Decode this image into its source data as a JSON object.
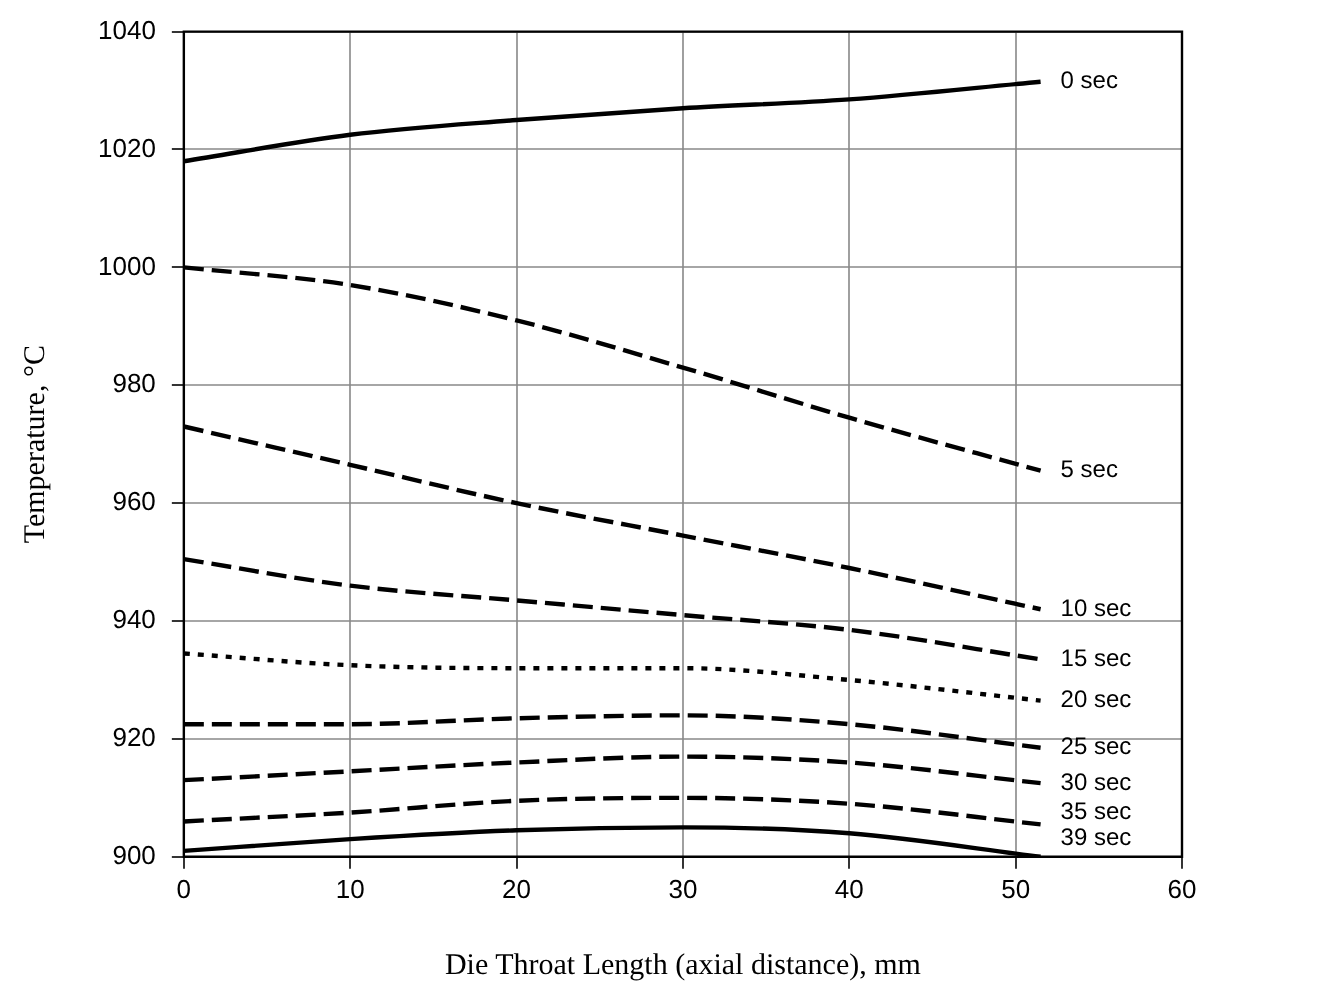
{
  "chart_data": {
    "type": "line",
    "xlabel": "Die Throat Length (axial distance), mm",
    "ylabel": "Temperature, °C",
    "x": [
      0,
      10,
      20,
      30,
      40,
      51.5
    ],
    "xlim": [
      0,
      60
    ],
    "xticks": [
      0,
      10,
      20,
      30,
      40,
      50,
      60
    ],
    "ylim": [
      900,
      1040
    ],
    "yticks": [
      900,
      920,
      940,
      960,
      980,
      1000,
      1020,
      1040
    ],
    "grid": true,
    "legend": false,
    "marker": "none",
    "series": [
      {
        "name": "0 sec",
        "color": "#000000",
        "line_style": "solid",
        "values": [
          1018,
          1022.5,
          1025,
          1027,
          1028.5,
          1031.5
        ]
      },
      {
        "name": "5 sec",
        "color": "#000000",
        "line_style": "dashed",
        "values": [
          1000,
          997,
          991,
          983,
          974.5,
          965.5
        ]
      },
      {
        "name": "10 sec",
        "color": "#000000",
        "line_style": "dashed",
        "values": [
          973,
          966.5,
          960,
          954.5,
          949,
          942
        ]
      },
      {
        "name": "15 sec",
        "color": "#000000",
        "line_style": "dashed",
        "values": [
          950.5,
          946,
          943.5,
          941,
          938.5,
          933.5
        ]
      },
      {
        "name": "20 sec",
        "color": "#000000",
        "line_style": "dotted",
        "values": [
          934.5,
          932.5,
          932,
          932,
          930,
          926.5
        ]
      },
      {
        "name": "25 sec",
        "color": "#000000",
        "line_style": "dashed",
        "values": [
          922.5,
          922.5,
          923.5,
          924,
          922.5,
          918.5
        ]
      },
      {
        "name": "30 sec",
        "color": "#000000",
        "line_style": "dashed",
        "values": [
          913,
          914.5,
          916,
          917,
          916,
          912.5
        ]
      },
      {
        "name": "35 sec",
        "color": "#000000",
        "line_style": "dashed",
        "values": [
          906,
          907.5,
          909.5,
          910,
          909,
          905.5
        ]
      },
      {
        "name": "39 sec",
        "color": "#000000",
        "line_style": "solid",
        "values": [
          901,
          903,
          904.5,
          905,
          904,
          900
        ]
      }
    ]
  }
}
